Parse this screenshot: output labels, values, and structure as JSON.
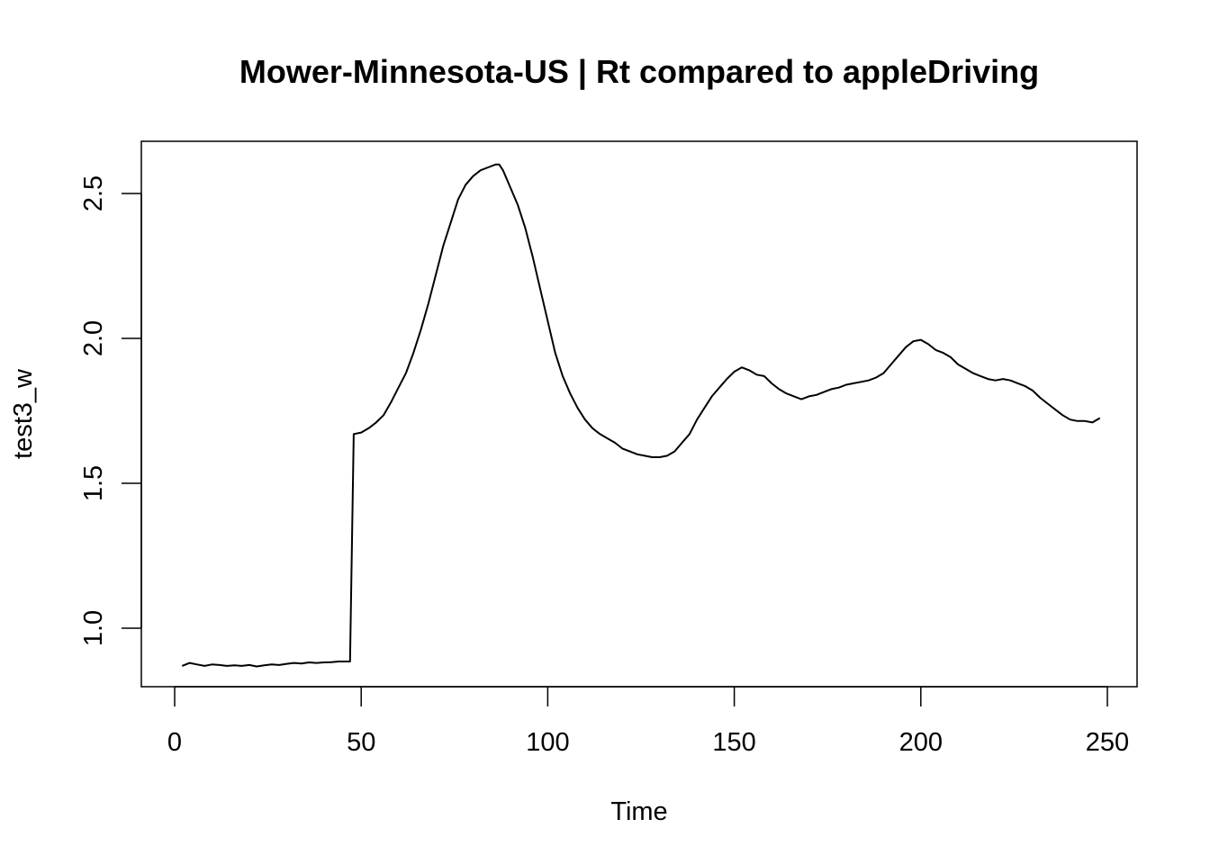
{
  "chart_data": {
    "type": "line",
    "title": "Mower-Minnesota-US | Rt compared to appleDriving",
    "xlabel": "Time",
    "ylabel": "test3_w",
    "xlim": [
      1,
      248
    ],
    "ylim": [
      0.86,
      2.61
    ],
    "xticks": [
      0,
      50,
      100,
      150,
      200,
      250
    ],
    "yticks": [
      1.0,
      1.5,
      2.0,
      2.5
    ],
    "xtick_labels": [
      "0",
      "50",
      "100",
      "150",
      "200",
      "250"
    ],
    "ytick_labels": [
      "1.0",
      "1.5",
      "2.0",
      "2.5"
    ],
    "grid": false,
    "legend": "none",
    "line_color": "#000000",
    "series": [
      {
        "x": [
          2,
          4,
          6,
          8,
          10,
          12,
          14,
          16,
          18,
          20,
          22,
          24,
          26,
          28,
          30,
          32,
          34,
          36,
          38,
          40,
          42,
          44,
          46,
          47,
          48,
          50,
          52,
          54,
          56,
          58,
          60,
          62,
          64,
          66,
          68,
          70,
          72,
          74,
          76,
          78,
          80,
          82,
          84,
          86,
          87,
          88,
          90,
          92,
          94,
          96,
          98,
          100,
          102,
          104,
          106,
          108,
          110,
          112,
          114,
          116,
          118,
          120,
          122,
          124,
          126,
          128,
          130,
          132,
          134,
          136,
          138,
          140,
          142,
          144,
          146,
          148,
          150,
          152,
          154,
          156,
          158,
          160,
          162,
          164,
          166,
          168,
          170,
          172,
          174,
          176,
          178,
          180,
          182,
          184,
          186,
          188,
          190,
          192,
          194,
          196,
          198,
          200,
          202,
          204,
          206,
          208,
          210,
          212,
          214,
          216,
          218,
          220,
          222,
          224,
          226,
          228,
          230,
          232,
          234,
          236,
          238,
          240,
          242,
          244,
          246,
          248
        ],
        "y": [
          0.87,
          0.88,
          0.875,
          0.87,
          0.875,
          0.873,
          0.87,
          0.872,
          0.87,
          0.873,
          0.868,
          0.872,
          0.875,
          0.873,
          0.877,
          0.88,
          0.878,
          0.882,
          0.88,
          0.882,
          0.883,
          0.885,
          0.885,
          0.885,
          1.67,
          1.675,
          1.69,
          1.71,
          1.735,
          1.78,
          1.83,
          1.88,
          1.95,
          2.03,
          2.12,
          2.22,
          2.32,
          2.4,
          2.48,
          2.53,
          2.56,
          2.58,
          2.59,
          2.6,
          2.6,
          2.58,
          2.52,
          2.46,
          2.38,
          2.28,
          2.17,
          2.06,
          1.95,
          1.87,
          1.81,
          1.76,
          1.72,
          1.69,
          1.67,
          1.655,
          1.64,
          1.62,
          1.61,
          1.6,
          1.595,
          1.59,
          1.59,
          1.595,
          1.61,
          1.64,
          1.67,
          1.72,
          1.76,
          1.8,
          1.83,
          1.86,
          1.885,
          1.9,
          1.89,
          1.875,
          1.87,
          1.845,
          1.825,
          1.81,
          1.8,
          1.79,
          1.8,
          1.805,
          1.815,
          1.825,
          1.83,
          1.84,
          1.845,
          1.85,
          1.855,
          1.865,
          1.88,
          1.91,
          1.94,
          1.97,
          1.99,
          1.995,
          1.98,
          1.96,
          1.95,
          1.935,
          1.91,
          1.895,
          1.88,
          1.87,
          1.86,
          1.855,
          1.86,
          1.855,
          1.845,
          1.835,
          1.82,
          1.795,
          1.775,
          1.755,
          1.735,
          1.72,
          1.715,
          1.715,
          1.71,
          1.725
        ]
      }
    ]
  }
}
